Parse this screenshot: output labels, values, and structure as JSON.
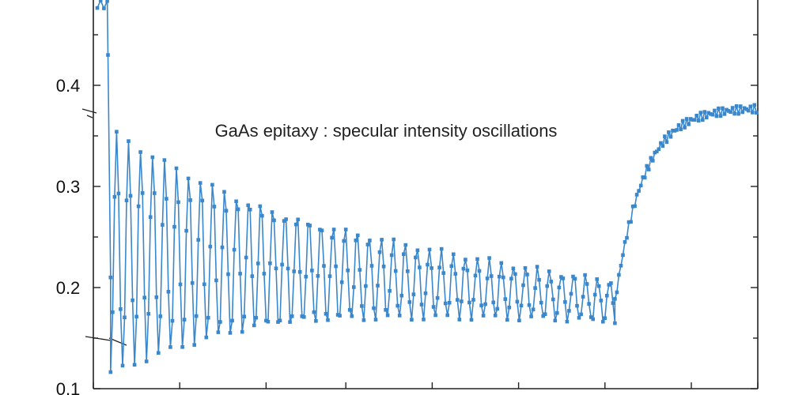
{
  "chart_data": {
    "type": "line",
    "title": "GaAs epitaxy : specular intensity oscillations",
    "xlabel": "",
    "ylabel": "",
    "xlim": [
      0,
      100
    ],
    "ylim": [
      0.1,
      0.5
    ],
    "grid": false,
    "y_ticks": [
      0.1,
      0.2,
      0.3,
      0.4
    ],
    "y_tick_labels": [
      "0.1",
      "0.2",
      "0.3",
      "0.4"
    ],
    "x_ticks": [
      0,
      13,
      26,
      38,
      51,
      64,
      77,
      90,
      100
    ],
    "series": [
      {
        "color": "#3a87cc",
        "trace": {
          "initial_level": 0.48,
          "drop_start_x": 2.2,
          "drop_end_x": 2.6,
          "oscillation_start_x": 2.6,
          "oscillation_end_x": 78.5,
          "oscillation_period": 1.81,
          "mean_start": 0.235,
          "mean_end": 0.186,
          "amplitude_start": 0.108,
          "amplitude_end": 0.012,
          "recovery_end_x": 100,
          "recovery_final_level": 0.378
        }
      }
    ]
  }
}
